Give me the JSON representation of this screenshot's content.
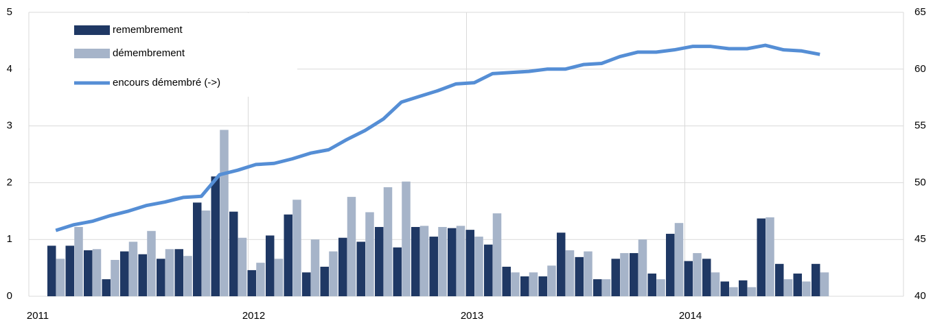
{
  "chart_data": {
    "type": "bar",
    "categories": [
      "2011",
      null,
      null,
      null,
      null,
      null,
      null,
      null,
      null,
      null,
      null,
      "2012",
      null,
      null,
      null,
      null,
      null,
      null,
      null,
      null,
      null,
      null,
      null,
      "2013",
      null,
      null,
      null,
      null,
      null,
      null,
      null,
      null,
      null,
      null,
      null,
      "2014",
      null,
      null,
      null,
      null,
      null,
      null,
      null
    ],
    "series": [
      {
        "name": "remembrement",
        "type": "bar",
        "color": "#1f3864",
        "values": [
          0.89,
          0.89,
          0.81,
          0.3,
          0.79,
          0.74,
          0.66,
          0.83,
          1.65,
          2.11,
          1.49,
          0.46,
          1.07,
          1.44,
          0.42,
          0.52,
          1.03,
          0.96,
          1.22,
          0.86,
          1.22,
          1.05,
          1.2,
          1.17,
          0.91,
          0.52,
          0.35,
          0.35,
          1.12,
          0.69,
          0.3,
          0.66,
          0.76,
          0.4,
          1.1,
          0.62,
          0.66,
          0.26,
          0.28,
          1.37,
          0.57,
          0.4,
          0.57
        ]
      },
      {
        "name": "démembrement",
        "type": "bar",
        "color": "#a6b4c9",
        "values": [
          0.66,
          1.22,
          0.83,
          0.64,
          0.96,
          1.15,
          0.83,
          0.71,
          1.51,
          2.93,
          1.03,
          0.59,
          0.66,
          1.7,
          1.0,
          0.79,
          1.75,
          1.48,
          1.92,
          2.02,
          1.24,
          1.22,
          1.24,
          1.05,
          1.46,
          0.42,
          0.42,
          0.54,
          0.81,
          0.79,
          0.3,
          0.76,
          1.0,
          0.3,
          1.29,
          0.76,
          0.42,
          0.16,
          0.16,
          1.39,
          0.3,
          0.26,
          0.42
        ]
      },
      {
        "name": "encours démembré (->)",
        "type": "line",
        "axis": "y2",
        "color": "#558ed5",
        "values": [
          45.8,
          46.3,
          46.6,
          47.1,
          47.5,
          48.0,
          48.3,
          48.7,
          48.8,
          50.7,
          51.1,
          51.6,
          51.7,
          52.1,
          52.6,
          52.9,
          53.8,
          54.6,
          55.6,
          57.1,
          57.6,
          58.1,
          58.7,
          58.8,
          59.6,
          59.7,
          59.8,
          60.0,
          60.0,
          60.4,
          60.5,
          61.1,
          61.5,
          61.5,
          61.7,
          62.0,
          62.0,
          61.8,
          61.8,
          62.1,
          61.7,
          61.6,
          61.3
        ]
      }
    ],
    "ylim": [
      0,
      5
    ],
    "yticks": [
      0,
      1,
      2,
      3,
      4,
      5
    ],
    "y2lim": [
      40,
      65
    ],
    "y2ticks": [
      40,
      45,
      50,
      55,
      60,
      65
    ],
    "grid": true,
    "legend": "top-left"
  }
}
